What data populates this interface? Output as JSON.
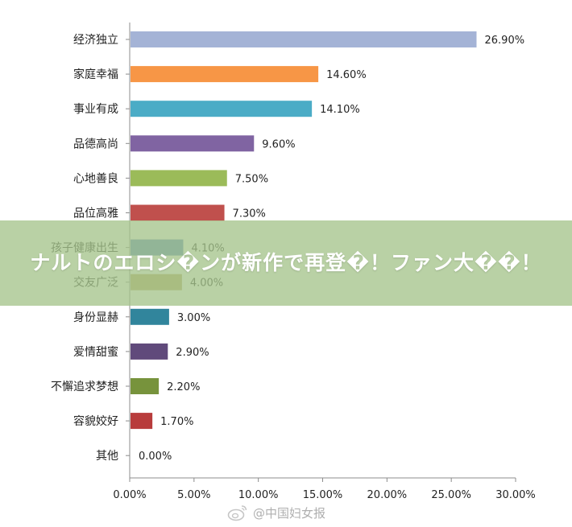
{
  "chart_data": {
    "type": "bar",
    "orientation": "horizontal",
    "categories": [
      "经济独立",
      "家庭幸福",
      "事业有成",
      "品德高尚",
      "心地善良",
      "品位高雅",
      "孩子健康出生",
      "交友广泛",
      "身份显赫",
      "爱情甜蜜",
      "不懈追求梦想",
      "容貌姣好",
      "其他"
    ],
    "values": [
      26.9,
      14.6,
      14.1,
      9.6,
      7.5,
      7.3,
      4.1,
      4.0,
      3.0,
      2.9,
      2.2,
      1.7,
      0.0
    ],
    "value_labels": [
      "26.90%",
      "14.60%",
      "14.10%",
      "9.60%",
      "7.50%",
      "7.30%",
      "4.10%",
      "4.00%",
      "3.00%",
      "2.90%",
      "2.20%",
      "1.70%",
      "0.00%"
    ],
    "colors": [
      "#a4b3d6",
      "#f79646",
      "#4bacc6",
      "#8064a2",
      "#9bbb59",
      "#c0504d",
      "#4f81bd",
      "#b8a35a",
      "#31859c",
      "#604a7b",
      "#77933c",
      "#b83c3c",
      "#4f81bd"
    ],
    "xlim": [
      0,
      30
    ],
    "x_ticks": [
      "0.00%",
      "5.00%",
      "10.00%",
      "15.00%",
      "20.00%",
      "25.00%",
      "30.00%"
    ],
    "grid": false,
    "title": "",
    "xlabel": "",
    "ylabel": ""
  },
  "overlay": {
    "title": "ナルトのエロシ�ンが新作で再登�！ファン大��！"
  },
  "watermark": {
    "icon": "weibo-icon",
    "text": "@中国妇女报"
  }
}
